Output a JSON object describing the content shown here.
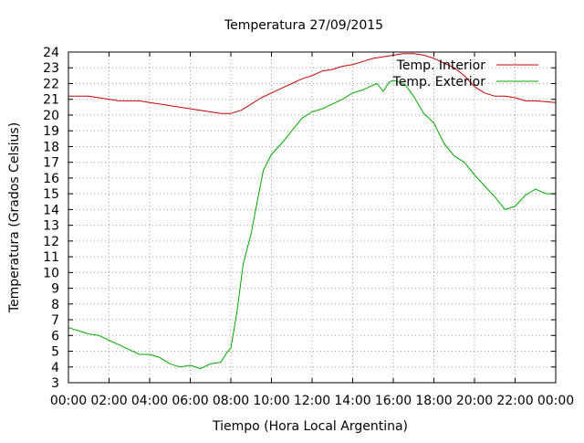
{
  "chart_data": {
    "type": "line",
    "title": "Temperatura 27/09/2015",
    "xlabel": "Tiempo (Hora Local Argentina)",
    "ylabel": "Temperatura (Grados Celsius)",
    "xlim": [
      0,
      24
    ],
    "ylim": [
      3,
      24
    ],
    "x_ticks": [
      0,
      2,
      4,
      6,
      8,
      10,
      12,
      14,
      16,
      18,
      20,
      22,
      24
    ],
    "x_tick_labels": [
      "00:00",
      "02:00",
      "04:00",
      "06:00",
      "08:00",
      "10:00",
      "12:00",
      "14:00",
      "16:00",
      "18:00",
      "20:00",
      "22:00",
      "00:00"
    ],
    "y_ticks": [
      3,
      4,
      5,
      6,
      7,
      8,
      9,
      10,
      11,
      12,
      13,
      14,
      15,
      16,
      17,
      18,
      19,
      20,
      21,
      22,
      23,
      24
    ],
    "grid": true,
    "legend_position": "top-right",
    "series": [
      {
        "name": "Temp. Interior",
        "color": "#cc0000",
        "x": [
          0,
          1,
          1.5,
          2.5,
          3.5,
          4,
          5,
          6,
          6.5,
          7,
          7.5,
          8,
          8.5,
          9,
          9.5,
          10,
          10.5,
          11,
          11.5,
          12,
          12.5,
          13,
          13.5,
          14,
          14.5,
          15,
          15.5,
          16,
          16.5,
          17,
          17.5,
          18,
          18.5,
          19,
          19.5,
          20,
          20.5,
          21,
          21.5,
          22,
          22.5,
          23,
          24
        ],
        "y": [
          21.2,
          21.2,
          21.1,
          20.9,
          20.9,
          20.8,
          20.6,
          20.4,
          20.3,
          20.2,
          20.1,
          20.1,
          20.3,
          20.7,
          21.1,
          21.4,
          21.7,
          22.0,
          22.3,
          22.5,
          22.8,
          22.9,
          23.1,
          23.2,
          23.4,
          23.6,
          23.7,
          23.8,
          23.9,
          23.9,
          23.8,
          23.6,
          23.3,
          23.0,
          22.5,
          21.8,
          21.4,
          21.2,
          21.2,
          21.1,
          20.9,
          20.9,
          20.8
        ]
      },
      {
        "name": "Temp. Exterior",
        "color": "#00aa00",
        "x": [
          0,
          0.5,
          1,
          1.5,
          2,
          2.5,
          3,
          3.5,
          4,
          4.5,
          5,
          5.5,
          6,
          6.5,
          7,
          7.5,
          7.8,
          8,
          8.3,
          8.6,
          9,
          9.3,
          9.6,
          10,
          10.5,
          11,
          11.5,
          12,
          12.5,
          13,
          13.5,
          14,
          14.5,
          15,
          15.2,
          15.5,
          15.8,
          16,
          16.3,
          16.6,
          17,
          17.5,
          18,
          18.5,
          19,
          19.5,
          20,
          20.5,
          21,
          21.5,
          22,
          22.5,
          23,
          23.5,
          24
        ],
        "y": [
          6.5,
          6.3,
          6.1,
          6.0,
          5.7,
          5.4,
          5.1,
          4.8,
          4.8,
          4.6,
          4.2,
          4.0,
          4.1,
          3.9,
          4.2,
          4.3,
          4.9,
          5.2,
          7.5,
          10.5,
          12.5,
          14.5,
          16.5,
          17.5,
          18.2,
          19.0,
          19.8,
          20.2,
          20.4,
          20.7,
          21.0,
          21.4,
          21.6,
          21.9,
          22.0,
          21.5,
          22.1,
          22.2,
          22.1,
          21.9,
          21.2,
          20.1,
          19.5,
          18.2,
          17.4,
          17.0,
          16.2,
          15.5,
          14.8,
          14.0,
          14.2,
          14.9,
          15.3,
          15.0,
          15.0
        ]
      }
    ]
  }
}
